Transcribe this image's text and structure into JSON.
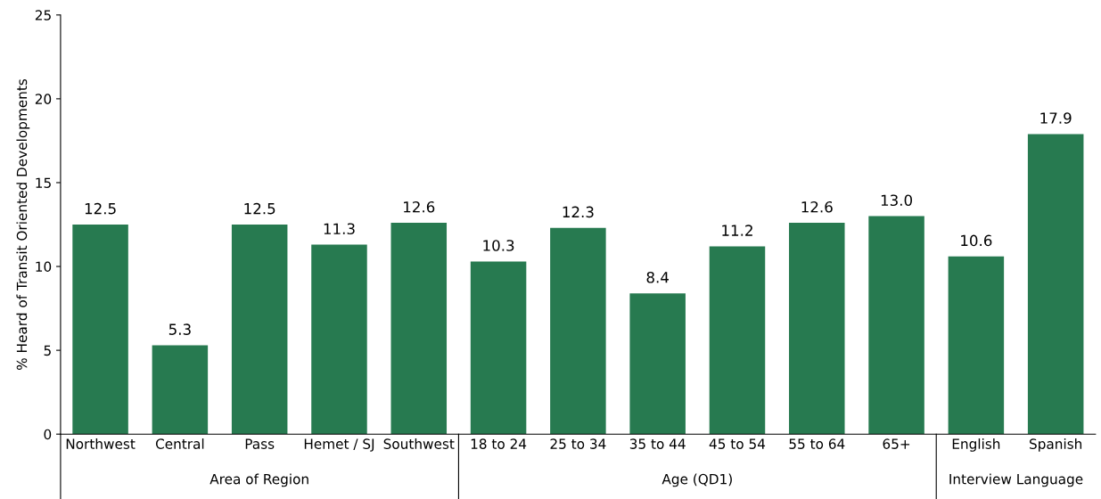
{
  "chart_data": {
    "type": "bar",
    "ylabel": "% Heard of Transit Oriented Developments",
    "categories": [
      "Northwest",
      "Central",
      "Pass",
      "Hemet / SJ",
      "Southwest",
      "18 to 24",
      "25 to 34",
      "35 to 44",
      "45 to 54",
      "55 to 64",
      "65+",
      "English",
      "Spanish"
    ],
    "values": [
      12.5,
      5.3,
      12.5,
      11.3,
      12.6,
      10.3,
      12.3,
      8.4,
      11.2,
      12.6,
      13.0,
      10.6,
      17.9
    ],
    "value_labels": [
      "12.5",
      "5.3",
      "12.5",
      "11.3",
      "12.6",
      "10.3",
      "12.3",
      "8.4",
      "11.2",
      "12.6",
      "13.0",
      "10.6",
      "17.9"
    ],
    "color": "#277a50",
    "ylim": [
      0,
      25
    ],
    "yticks": [
      0,
      5,
      10,
      15,
      20,
      25
    ],
    "grid": false,
    "annotations": [
      "Area of Region",
      "Age (QD1)",
      "Interview Language"
    ]
  }
}
